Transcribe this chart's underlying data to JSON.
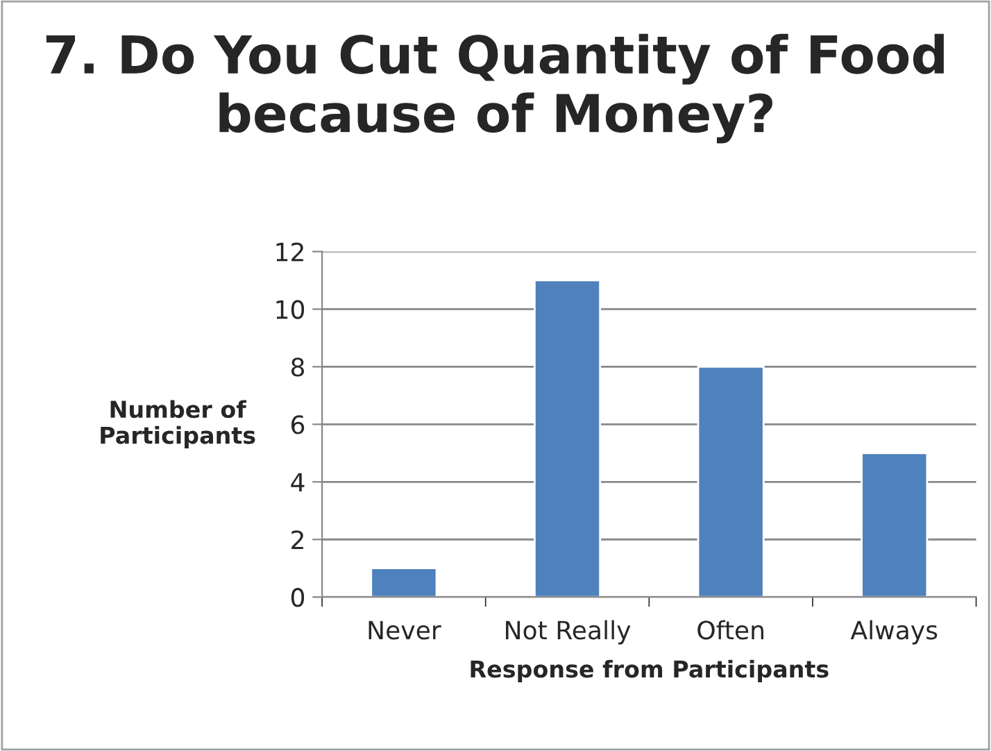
{
  "chart_data": {
    "type": "bar",
    "title": "7. Do You Cut Quantity of Food because of Money?",
    "xlabel": "Response from Participants",
    "ylabel": "Number of Participants",
    "categories": [
      "Never",
      "Not Really",
      "Often",
      "Always"
    ],
    "values": [
      1,
      11,
      8,
      5
    ],
    "color": "#4f81bd",
    "ylim": [
      0,
      12
    ],
    "yticks": [
      0,
      2,
      4,
      6,
      8,
      10,
      12
    ],
    "grid": "y",
    "legend": false
  }
}
